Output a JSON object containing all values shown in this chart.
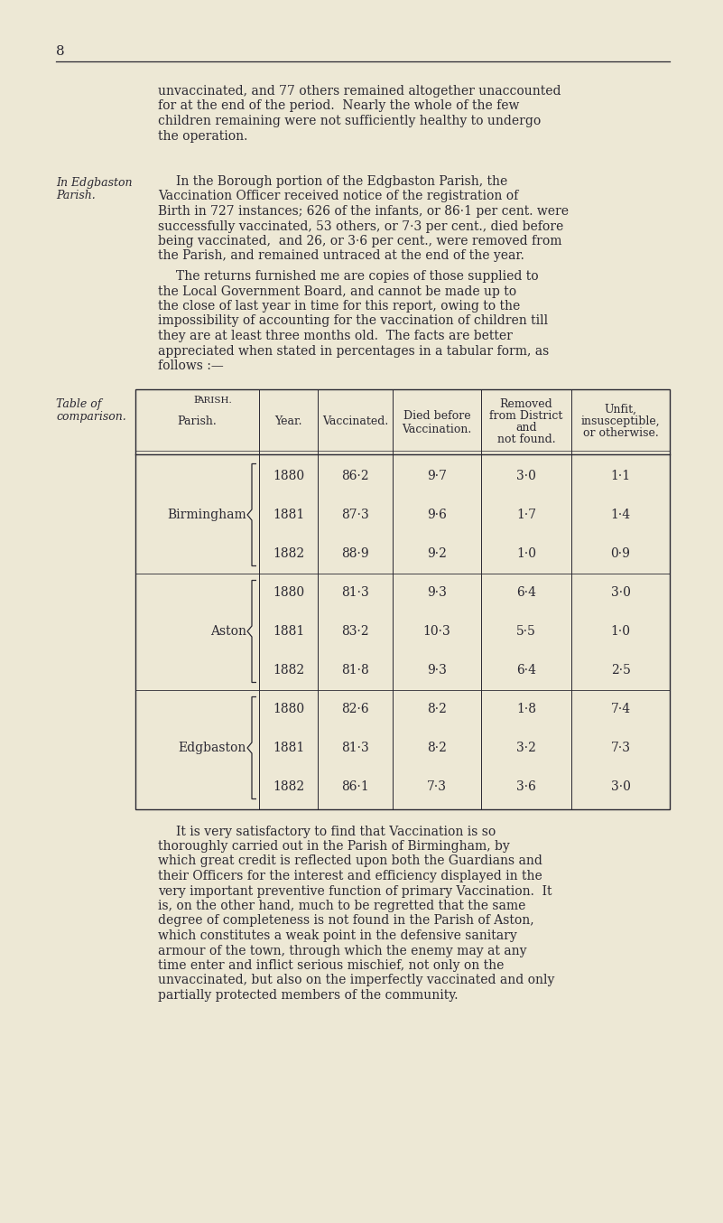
{
  "page_number": "8",
  "bg_color": "#ede8d5",
  "text_color": "#2a2832",
  "para1_lines": [
    "unvaccinated, and 77 others remained altogether unaccounted",
    "for at the end of the period.  Nearly the whole of the few",
    "children remaining were not sufficiently healthy to undergo",
    "the operation."
  ],
  "sidebar1": [
    "In Edgbaston",
    "Parish."
  ],
  "para2_lines": [
    "In the Borough portion of the Edgbaston Parish, the",
    "Vaccination Officer received notice of the registration of",
    "Birth in 727 instances; 626 of the infants, or 86·1 per cent. were",
    "successfully vaccinated, 53 others, or 7·3 per cent., died before",
    "being vaccinated,  and 26, or 3·6 per cent., were removed from",
    "the Parish, and remained untraced at the end of the year."
  ],
  "para3_lines": [
    "The returns furnished me are copies of those supplied to",
    "the Local Government Board, and cannot be made up to",
    "the close of last year in time for this report, owing to the",
    "impossibility of accounting for the vaccination of children till",
    "they are at least three months old.  The facts are better",
    "appreciated when stated in percentages in a tabular form, as",
    "follows :—"
  ],
  "sidebar2": [
    "Table of",
    "comparison."
  ],
  "col_headers": [
    "Parish.",
    "Year.",
    "Vaccinated.",
    "Died before\nVaccination.",
    "Removed\nfrom District\nand\nnot found.",
    "Unfit,\ninsusceptible,\nor otherwise."
  ],
  "data": [
    [
      "Birmingham",
      1880,
      "86·2",
      "9·7",
      "3·0",
      "1·1"
    ],
    [
      "Birmingham",
      1881,
      "87·3",
      "9·6",
      "1·7",
      "1·4"
    ],
    [
      "Birmingham",
      1882,
      "88·9",
      "9·2",
      "1·0",
      "0·9"
    ],
    [
      "Aston",
      1880,
      "81·3",
      "9·3",
      "6·4",
      "3·0"
    ],
    [
      "Aston",
      1881,
      "83·2",
      "10·3",
      "5·5",
      "1·0"
    ],
    [
      "Aston",
      1882,
      "81·8",
      "9·3",
      "6·4",
      "2·5"
    ],
    [
      "Edgbaston",
      1880,
      "82·6",
      "8·2",
      "1·8",
      "7·4"
    ],
    [
      "Edgbaston",
      1881,
      "81·3",
      "8·2",
      "3·2",
      "7·3"
    ],
    [
      "Edgbaston",
      1882,
      "86·1",
      "7·3",
      "3·6",
      "3·0"
    ]
  ],
  "para4_lines": [
    "It is very satisfactory to find that Vaccination is so",
    "thoroughly carried out in the Parish of Birmingham, by",
    "which great credit is reflected upon both the Guardians and",
    "their Officers for the interest and efficiency displayed in the",
    "very important preventive function of primary Vaccination.  It",
    "is, on the other hand, much to be regretted that the same",
    "degree of completeness is not found in the Parish of Aston,",
    "which constitutes a weak point in the defensive sanitary",
    "armour of the town, through which the enemy may at any",
    "time enter and inflict serious mischief, not only on the",
    "unvaccinated, but also on the imperfectly vaccinated and only",
    "partially protected members of the community."
  ]
}
